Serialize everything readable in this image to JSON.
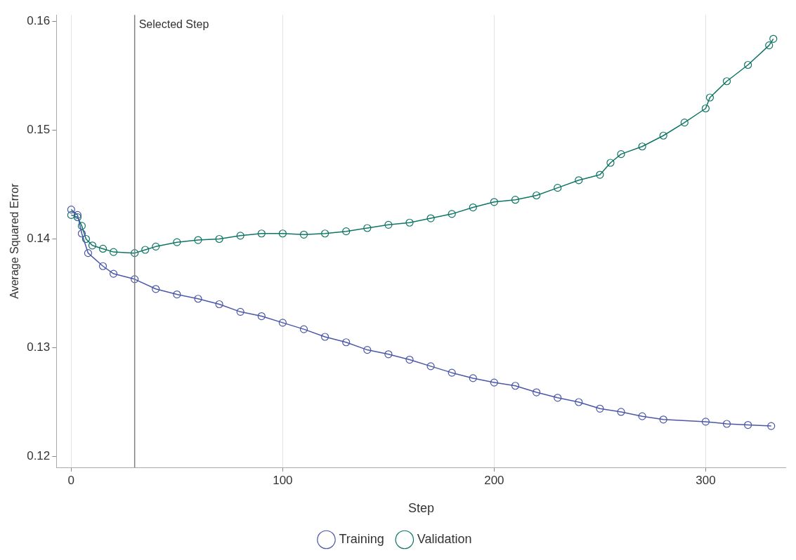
{
  "chart_data": {
    "type": "line",
    "xlabel": "Step",
    "ylabel": "Average Squared Error",
    "marker": "circle",
    "grid": "x",
    "legend": "bottom",
    "xlim": [
      -7,
      338
    ],
    "xticks": [
      0,
      100,
      200,
      300
    ],
    "ylim": [
      0.119,
      0.1606
    ],
    "yticks": [
      0.12,
      0.13,
      0.14,
      0.15,
      0.16
    ],
    "ref_lines": [
      {
        "axis": "x",
        "value": 30,
        "label": "Selected Step",
        "color": "#808080"
      }
    ],
    "series": [
      {
        "name": "Training",
        "color": "#4a57a8",
        "x": [
          0,
          3,
          5,
          8,
          15,
          20,
          30,
          40,
          50,
          60,
          70,
          80,
          90,
          100,
          110,
          120,
          130,
          140,
          150,
          160,
          170,
          180,
          190,
          200,
          210,
          220,
          230,
          240,
          250,
          260,
          270,
          280,
          300,
          310,
          320,
          331
        ],
        "values": [
          0.1427,
          0.1422,
          0.1405,
          0.1387,
          0.1375,
          0.1368,
          0.1363,
          0.1354,
          0.1349,
          0.1345,
          0.134,
          0.1333,
          0.1329,
          0.1323,
          0.1317,
          0.131,
          0.1305,
          0.1298,
          0.1294,
          0.1289,
          0.1283,
          0.1277,
          0.1272,
          0.1268,
          0.1265,
          0.1259,
          0.1254,
          0.125,
          0.1244,
          0.1241,
          0.1237,
          0.1234,
          0.1232,
          0.123,
          0.1229,
          0.1228
        ]
      },
      {
        "name": "Validation",
        "color": "#0e7565",
        "x": [
          0,
          3,
          5,
          7,
          10,
          15,
          20,
          30,
          35,
          40,
          50,
          60,
          70,
          80,
          90,
          100,
          110,
          120,
          130,
          140,
          150,
          160,
          170,
          180,
          190,
          200,
          210,
          220,
          230,
          240,
          250,
          255,
          260,
          270,
          280,
          290,
          300,
          302,
          310,
          320,
          330,
          332
        ],
        "values": [
          0.1422,
          0.142,
          0.1412,
          0.14,
          0.1394,
          0.1391,
          0.1388,
          0.1387,
          0.139,
          0.1393,
          0.1397,
          0.1399,
          0.14,
          0.1403,
          0.1405,
          0.1405,
          0.1404,
          0.1405,
          0.1407,
          0.141,
          0.1413,
          0.1415,
          0.1419,
          0.1423,
          0.1429,
          0.1434,
          0.1436,
          0.144,
          0.1447,
          0.1454,
          0.1459,
          0.147,
          0.1478,
          0.1485,
          0.1495,
          0.1507,
          0.152,
          0.153,
          0.1545,
          0.156,
          0.1578,
          0.1584
        ]
      }
    ]
  }
}
